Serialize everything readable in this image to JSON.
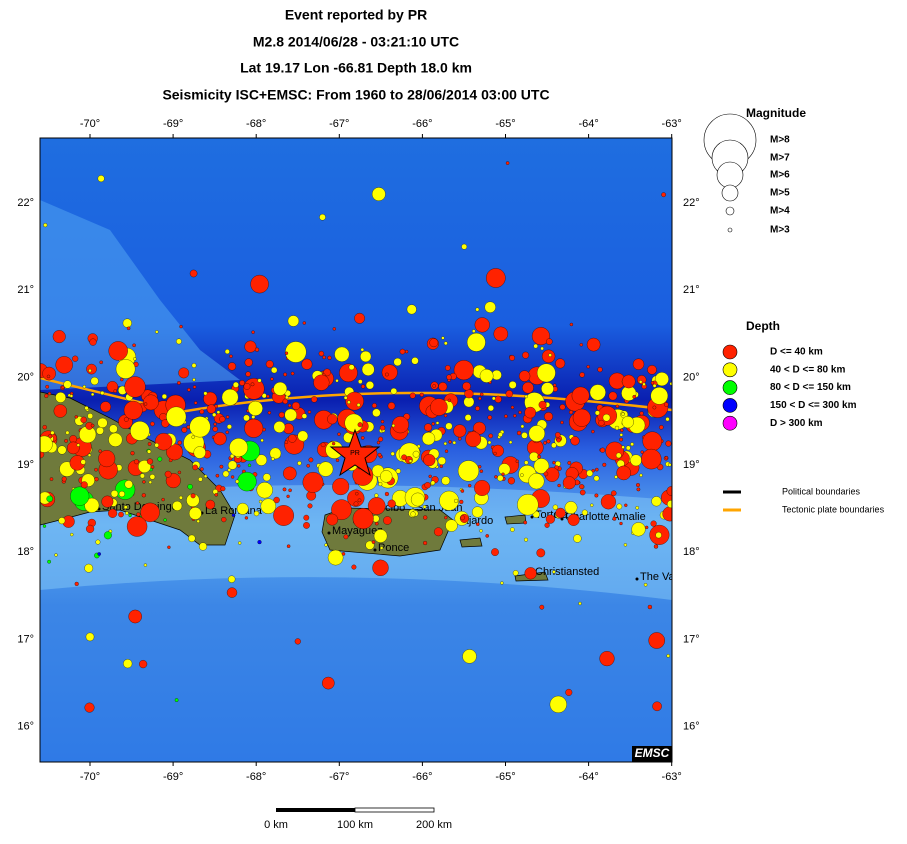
{
  "header": {
    "lines": [
      "Event reported by PR",
      "M2.8  2014/06/28 - 03:21:10 UTC",
      "Lat 19.17    Lon -66.81     Depth  18.0 km",
      "Seismicity ISC+EMSC: From 1960 to 28/06/2014 03:00 UTC"
    ]
  },
  "map": {
    "lon_ticks": [
      "-70°",
      "-69°",
      "-68°",
      "-67°",
      "-66°",
      "-65°",
      "-64°",
      "-63°"
    ],
    "lat_ticks": [
      "22°",
      "21°",
      "20°",
      "19°",
      "18°",
      "17°",
      "16°"
    ],
    "places": [
      "Santo Domingo",
      "La Romana",
      "Mayaguez",
      "Arecibo",
      "San Juan",
      "Ponce",
      "Fajardo",
      "Tortola",
      "Charlotte Amalie",
      "Christiansted",
      "The Valley"
    ],
    "epicenter_label": "PR",
    "credit": "EMSC"
  },
  "legend": {
    "magnitude_title": "Magnitude",
    "magnitudes": [
      "M>8",
      "M>7",
      "M>6",
      "M>5",
      "M>4",
      "M>3"
    ],
    "depth_title": "Depth",
    "depths": [
      {
        "label": "D <= 40 km",
        "color": "#ff2200"
      },
      {
        "label": "40 < D <= 80 km",
        "color": "#ffff00"
      },
      {
        "label": "80 < D <= 150 km",
        "color": "#00ff00"
      },
      {
        "label": "150 < D <= 300 km",
        "color": "#0000ff"
      },
      {
        "label": "D > 300 km",
        "color": "#ff00ff"
      }
    ],
    "boundaries": [
      {
        "label": "Political boundaries",
        "color": "#000000"
      },
      {
        "label": "Tectonic plate boundaries",
        "color": "#ffa500"
      }
    ]
  },
  "scale_bar": {
    "labels": [
      "0 km",
      "100 km",
      "200 km"
    ]
  }
}
